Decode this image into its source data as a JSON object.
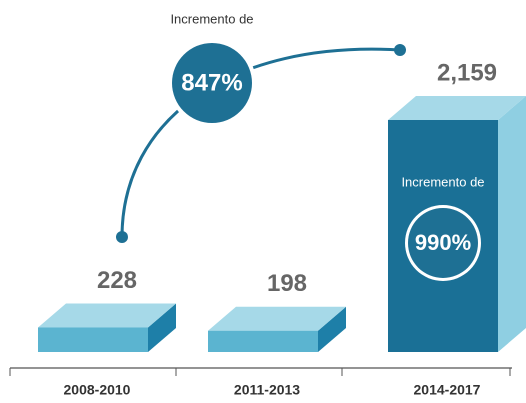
{
  "chart_data": {
    "type": "bar3d",
    "categories": [
      "2008-2010",
      "2011-2013",
      "2014-2017"
    ],
    "values": [
      228,
      198,
      2159
    ],
    "value_labels": [
      "228",
      "198",
      "2,159"
    ],
    "annotations": [
      {
        "text": "Incremento de",
        "value": "847%"
      },
      {
        "text": "Incremento de",
        "value": "990%"
      }
    ]
  }
}
